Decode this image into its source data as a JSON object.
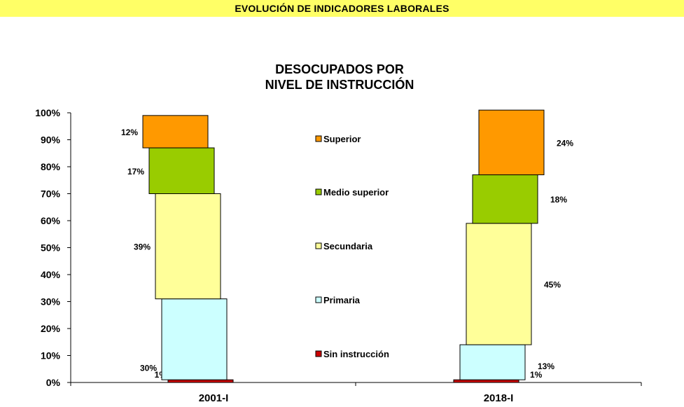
{
  "header": {
    "title": "EVOLUCIÓN DE INDICADORES LABORALES"
  },
  "chart_data": {
    "type": "bar",
    "stacked": true,
    "title_lines": [
      "DESOCUPADOS POR",
      "NIVEL DE INSTRUCCIÓN"
    ],
    "categories": [
      "2001-I",
      "2018-I"
    ],
    "ylim": [
      0,
      100
    ],
    "yticks": [
      "0%",
      "10%",
      "20%",
      "30%",
      "40%",
      "50%",
      "60%",
      "70%",
      "80%",
      "90%",
      "100%"
    ],
    "legend_position": "center",
    "series": [
      {
        "name": "Sin instrucción",
        "values": [
          1,
          1
        ],
        "labels": [
          "1%",
          "1%"
        ],
        "color": "#cc0000"
      },
      {
        "name": "Primaria",
        "values": [
          30,
          13
        ],
        "labels": [
          "30%",
          "13%"
        ],
        "color": "#ccffff"
      },
      {
        "name": "Secundaria",
        "values": [
          39,
          45
        ],
        "labels": [
          "39%",
          "45%"
        ],
        "color": "#ffff99"
      },
      {
        "name": "Medio superior",
        "values": [
          17,
          18
        ],
        "labels": [
          "17%",
          "18%"
        ],
        "color": "#99cc00"
      },
      {
        "name": "Superior",
        "values": [
          12,
          24
        ],
        "labels": [
          "12%",
          "24%"
        ],
        "color": "#ff9900"
      }
    ]
  }
}
